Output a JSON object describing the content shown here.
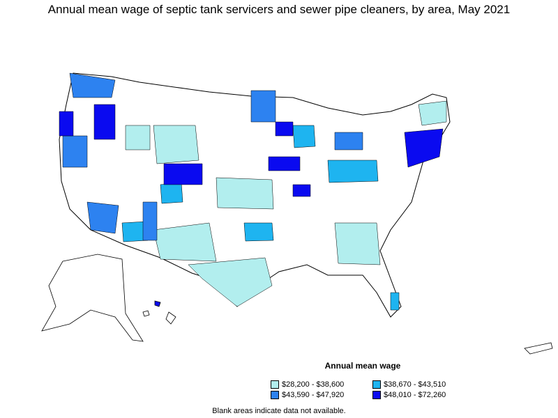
{
  "title": "Annual mean wage of septic tank servicers and sewer pipe cleaners, by area, May 2021",
  "legend": {
    "title": "Annual mean wage",
    "items": [
      {
        "label": "$28,200 - $38,600",
        "color": "#b2eeee"
      },
      {
        "label": "$38,670 - $43,510",
        "color": "#1eb4f0"
      },
      {
        "label": "$43,590 - $47,920",
        "color": "#2d82f0"
      },
      {
        "label": "$48,010 - $72,260",
        "color": "#0a0af0"
      }
    ]
  },
  "note": "Blank areas indicate data not available."
}
